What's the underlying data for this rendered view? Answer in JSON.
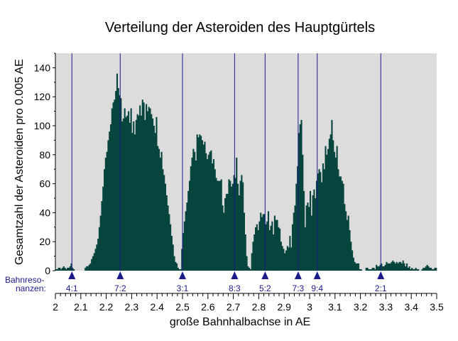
{
  "chart_data": {
    "type": "bar",
    "title": "Verteilung der Asteroiden des Hauptgürtels",
    "xlabel": "große Bahnhalbachse in AE",
    "ylabel": "Gesamtzahl der Asteroiden pro 0.005 AE",
    "xlim": [
      2.0,
      3.5
    ],
    "ylim": [
      0,
      150
    ],
    "bin_width": 0.005,
    "x_ticks": [
      "2",
      "2.1",
      "2.2",
      "2.3",
      "2.4",
      "2.5",
      "2.6",
      "2.7",
      "2.8",
      "2.9",
      "3",
      "3.1",
      "3.2",
      "3.3",
      "3.4",
      "3.5"
    ],
    "y_ticks": [
      "0",
      "20",
      "40",
      "60",
      "80",
      "100",
      "120",
      "140"
    ],
    "grid": false,
    "colors": {
      "bars": "#06443e",
      "plot_background": "#dcdcdc",
      "resonance_lines": "#1a1a8a"
    },
    "resonance_caption": [
      "Bahnreso-",
      "nanzen:"
    ],
    "resonances": [
      {
        "label": "4:1",
        "a": 2.065
      },
      {
        "label": "7:2",
        "a": 2.255
      },
      {
        "label": "3:1",
        "a": 2.5
      },
      {
        "label": "8:3",
        "a": 2.705
      },
      {
        "label": "5:2",
        "a": 2.825
      },
      {
        "label": "7:3",
        "a": 2.955
      },
      {
        "label": "9:4",
        "a": 3.03
      },
      {
        "label": "2:1",
        "a": 3.28
      }
    ],
    "histogram": {
      "start": 2.0,
      "values": [
        1,
        1,
        2,
        2,
        1,
        2,
        3,
        2,
        1,
        2,
        2,
        3,
        5,
        2,
        1,
        0,
        0,
        0,
        0,
        0,
        0,
        0,
        0,
        2,
        3,
        3,
        4,
        5,
        8,
        10,
        12,
        15,
        18,
        22,
        30,
        38,
        48,
        58,
        70,
        78,
        82,
        90,
        96,
        101,
        112,
        116,
        118,
        124,
        136,
        126,
        121,
        119,
        103,
        105,
        112,
        106,
        107,
        110,
        102,
        112,
        95,
        103,
        94,
        104,
        108,
        107,
        114,
        107,
        118,
        116,
        104,
        115,
        110,
        113,
        112,
        108,
        105,
        100,
        95,
        106,
        86,
        84,
        78,
        82,
        70,
        66,
        60,
        52,
        45,
        39,
        32,
        24,
        18,
        10,
        6,
        5,
        2,
        1,
        1,
        15,
        26,
        34,
        41,
        47,
        55,
        62,
        72,
        78,
        84,
        82,
        76,
        94,
        92,
        94,
        93,
        90,
        87,
        89,
        81,
        77,
        80,
        82,
        83,
        74,
        77,
        70,
        64,
        62,
        62,
        62,
        63,
        45,
        40,
        50,
        53,
        53,
        63,
        62,
        58,
        60,
        66,
        64,
        78,
        60,
        52,
        62,
        66,
        61,
        40,
        25,
        10,
        3,
        2,
        1,
        12,
        20,
        25,
        30,
        32,
        28,
        34,
        40,
        37,
        39,
        39,
        32,
        34,
        41,
        28,
        31,
        34,
        25,
        38,
        35,
        35,
        30,
        29,
        20,
        17,
        15,
        12,
        14,
        17,
        16,
        24,
        16,
        32,
        40,
        45,
        60,
        72,
        95,
        101,
        104,
        80,
        55,
        30,
        45,
        47,
        44,
        55,
        38,
        52,
        56,
        50,
        62,
        67,
        70,
        68,
        61,
        74,
        70,
        86,
        80,
        84,
        91,
        94,
        104,
        90,
        82,
        78,
        86,
        70,
        65,
        65,
        62,
        60,
        46,
        41,
        35,
        38,
        28,
        20,
        14,
        9,
        6,
        5,
        5,
        5,
        1,
        1,
        0,
        0,
        0,
        2,
        2,
        1,
        1,
        1,
        2,
        2,
        1,
        4,
        3,
        3,
        4,
        5,
        3,
        3,
        4,
        6,
        5,
        5,
        5,
        6,
        7,
        6,
        5,
        6,
        5,
        6,
        6,
        5,
        7,
        5,
        3,
        5,
        2,
        3,
        1,
        2,
        1,
        1,
        2,
        1,
        1,
        0,
        0,
        1,
        2,
        2,
        3,
        4,
        3,
        2,
        2,
        1,
        1,
        2,
        2
      ]
    }
  }
}
